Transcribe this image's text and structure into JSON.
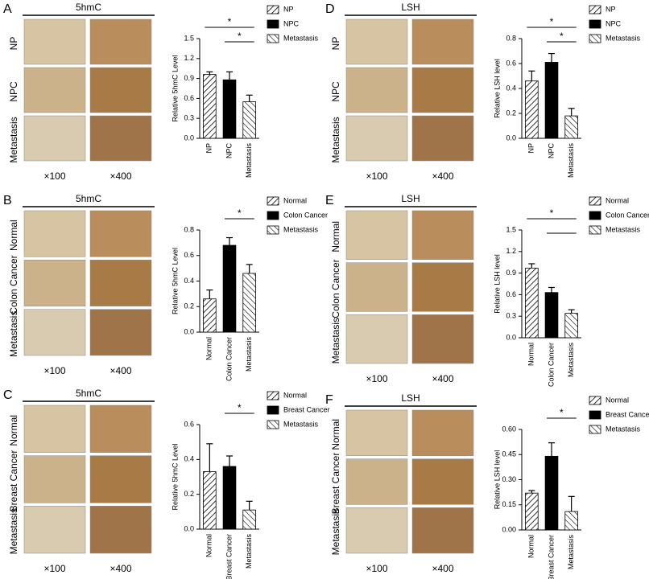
{
  "chart_data": [
    {
      "type": "bar",
      "panel": "A",
      "image_title": "5hmC",
      "image_rows": [
        "NP",
        "NPC",
        "Metastasis"
      ],
      "image_columns": [
        "×100",
        "×400"
      ],
      "ylabel": "Relative 5hmC Level",
      "categories": [
        "NP",
        "NPC",
        "Metastasis"
      ],
      "values": [
        0.96,
        0.88,
        0.55
      ],
      "errors": [
        0.04,
        0.12,
        0.1
      ],
      "bar_styles": [
        "hatch",
        "solid",
        "hatch-reverse"
      ],
      "ylim": [
        0,
        1.5
      ],
      "yticks": [
        {
          "value": 0,
          "label": "0.0"
        },
        0.3,
        0.6,
        0.9,
        1.2,
        1.5
      ],
      "significance": [
        {
          "between": [
            0,
            2
          ],
          "label": "*"
        },
        {
          "between": [
            1,
            2
          ],
          "label": "*"
        }
      ]
    },
    {
      "type": "bar",
      "panel": "B",
      "image_title": "5hmC",
      "image_rows": [
        "Normal",
        "Colon Cancer",
        "Metastasis"
      ],
      "image_columns": [
        "×100",
        "×400"
      ],
      "ylabel": "Relative 5hmC Level",
      "categories": [
        "Normal",
        "Colon Cancer",
        "Metastasis"
      ],
      "values": [
        0.26,
        0.68,
        0.46
      ],
      "errors": [
        0.07,
        0.06,
        0.07
      ],
      "bar_styles": [
        "hatch",
        "solid",
        "hatch-reverse"
      ],
      "ylim": [
        0,
        0.8
      ],
      "yticks": [
        {
          "value": 0,
          "label": "0.0"
        },
        0.2,
        0.4,
        0.6,
        0.8
      ],
      "significance": [
        {
          "between": [
            1,
            2
          ],
          "label": "*"
        }
      ]
    },
    {
      "type": "bar",
      "panel": "C",
      "image_title": "5hmC",
      "image_rows": [
        "Normal",
        "Breast Cancer",
        "Metastasis"
      ],
      "image_columns": [
        "×100",
        "×400"
      ],
      "ylabel": "Relative 5hmC Level",
      "categories": [
        "Normal",
        "Breast Cancer",
        "Metastasis"
      ],
      "values": [
        0.33,
        0.36,
        0.11
      ],
      "errors": [
        0.16,
        0.06,
        0.05
      ],
      "bar_styles": [
        "hatch",
        "solid",
        "hatch-reverse"
      ],
      "ylim": [
        0,
        0.6
      ],
      "yticks": [
        {
          "value": 0,
          "label": "0.0"
        },
        0.2,
        0.4,
        0.6
      ],
      "significance": [
        {
          "between": [
            1,
            2
          ],
          "label": "*"
        }
      ]
    },
    {
      "type": "bar",
      "panel": "D",
      "image_title": "LSH",
      "image_rows": [
        "NP",
        "NPC",
        "Metastasis"
      ],
      "image_columns": [
        "×100",
        "×400"
      ],
      "ylabel": "Relative LSH level",
      "categories": [
        "NP",
        "NPC",
        "Metastasis"
      ],
      "values": [
        0.46,
        0.61,
        0.18
      ],
      "errors": [
        0.08,
        0.07,
        0.06
      ],
      "bar_styles": [
        "hatch",
        "solid",
        "hatch-reverse"
      ],
      "ylim": [
        0,
        0.8
      ],
      "yticks": [
        {
          "value": 0,
          "label": "0.0"
        },
        0.2,
        0.4,
        0.6,
        0.8
      ],
      "significance": [
        {
          "between": [
            0,
            2
          ],
          "label": "*"
        },
        {
          "between": [
            1,
            2
          ],
          "label": "*"
        }
      ]
    },
    {
      "type": "bar",
      "panel": "E",
      "image_title": "LSH",
      "image_rows": [
        "Normal",
        "Colon Cancer",
        "Metastasis"
      ],
      "image_columns": [
        "×100",
        "×400"
      ],
      "ylabel": "Relative LSH level",
      "categories": [
        "Normal",
        "Colon Cancer",
        "Metastasis"
      ],
      "values": [
        0.97,
        0.63,
        0.34
      ],
      "errors": [
        0.06,
        0.07,
        0.05
      ],
      "bar_styles": [
        "hatch",
        "solid",
        "hatch-reverse"
      ],
      "ylim": [
        0,
        1.5
      ],
      "yticks": [
        {
          "value": 0,
          "label": "0.0"
        },
        0.3,
        0.6,
        0.9,
        1.2,
        1.5
      ],
      "significance": [
        {
          "between": [
            0,
            2
          ],
          "label": "*"
        },
        {
          "between": [
            1,
            2
          ]
        }
      ]
    },
    {
      "type": "bar",
      "panel": "F",
      "image_title": "LSH",
      "image_rows": [
        "Normal",
        "Breast Cancer",
        "Metastasis"
      ],
      "image_columns": [
        "×100",
        "×400"
      ],
      "ylabel": "Relative LSH level",
      "categories": [
        "Normal",
        "Breast Cancer",
        "Metastasis"
      ],
      "values": [
        0.22,
        0.44,
        0.11
      ],
      "errors": [
        0.015,
        0.08,
        0.09
      ],
      "bar_styles": [
        "hatch",
        "solid",
        "hatch-reverse"
      ],
      "ylim": [
        0,
        0.6
      ],
      "yticks": [
        {
          "value": 0,
          "label": "0.00"
        },
        0.15,
        {
          "value": 0.3,
          "label": "0.30"
        },
        0.45,
        {
          "value": 0.6,
          "label": "0.60"
        }
      ],
      "significance": [
        {
          "between": [
            1,
            2
          ],
          "label": "*"
        }
      ]
    }
  ]
}
